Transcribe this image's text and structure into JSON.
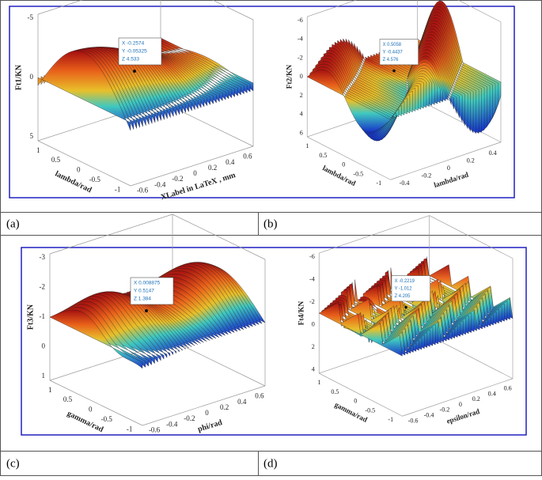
{
  "panels": [
    {
      "caption": "(a)",
      "zlabel": "Ft1/KN",
      "ylabel": "lambda/rad",
      "xlabel": "XLabel in LaTeX , mm",
      "zticks": [
        "5",
        "0",
        "-5"
      ],
      "yticks": [
        "1",
        "0.5",
        "0",
        "-0.5",
        "-1"
      ],
      "xticks": [
        "-0.6",
        "-0.4",
        "-0.2",
        "0",
        "0.2",
        "0.4",
        "0.6"
      ],
      "datatip": [
        "X -0.2574",
        "Y -0.05325",
        "Z 4.533"
      ]
    },
    {
      "caption": "(b)",
      "zlabel": "Ft2/KN",
      "ylabel": "lambda/rad",
      "xlabel": "lambda/rad",
      "zticks": [
        "6",
        "4",
        "2",
        "0",
        "-2",
        "-4",
        "-6"
      ],
      "yticks": [
        "1",
        "0.5",
        "0",
        "-0.5",
        "-1"
      ],
      "xticks": [
        "-0.4",
        "-0.2",
        "0",
        "0.2",
        "0.4"
      ],
      "datatip": [
        "X 0.5058",
        "Y -0.4437",
        "Z 4.576"
      ]
    },
    {
      "caption": "(c)",
      "zlabel": "Ft3/KN",
      "ylabel": "gamma/rad",
      "xlabel": "phi/rad",
      "zticks": [
        "1",
        "0",
        "-1",
        "-2",
        "-3"
      ],
      "yticks": [
        "1",
        "0.5",
        "0",
        "-0.5",
        "-1"
      ],
      "xticks": [
        "-0.6",
        "-0.4",
        "-0.2",
        "0",
        "0.2",
        "0.4",
        "0.6"
      ],
      "datatip": [
        "X 0.008875",
        "Y 0.5147",
        "Z 1.384"
      ]
    },
    {
      "caption": "(d)",
      "zlabel": "Ft4/KN",
      "ylabel": "gamma/rad",
      "xlabel": "epsilon/rad",
      "zticks": [
        "4",
        "2",
        "0",
        "-2",
        "-4",
        "-6"
      ],
      "yticks": [
        "1",
        "0.5",
        "0",
        "-0.5",
        "-1"
      ],
      "xticks": [
        "-0.6",
        "-0.4",
        "-0.2",
        "0",
        "0.2",
        "0.4",
        "0.6"
      ],
      "datatip": [
        "X -0.2219",
        "Y -1.012",
        "Z 4.205"
      ]
    }
  ]
}
